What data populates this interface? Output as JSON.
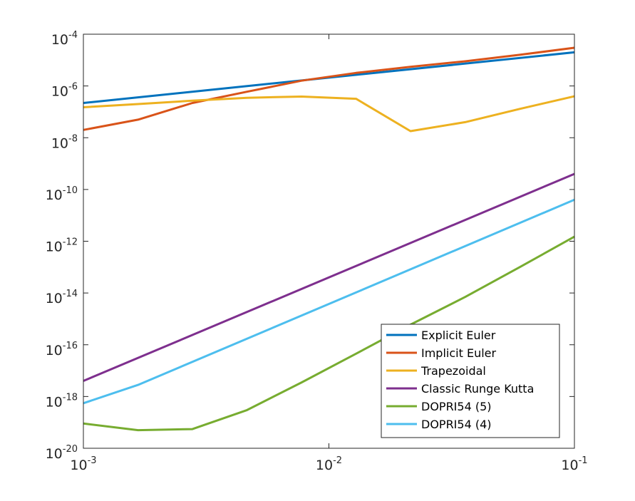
{
  "chart_data": {
    "type": "line",
    "title": "",
    "xlabel": "",
    "ylabel": "",
    "xscale": "log",
    "yscale": "log",
    "xlim": [
      0.001,
      0.1
    ],
    "ylim": [
      1e-20,
      0.0001
    ],
    "grid": false,
    "legend_position": "bottom-right",
    "x_ticks": [
      {
        "value": 0.001,
        "base": "10",
        "exp": "-3"
      },
      {
        "value": 0.01,
        "base": "10",
        "exp": "-2"
      },
      {
        "value": 0.1,
        "base": "10",
        "exp": "-1"
      }
    ],
    "y_ticks": [
      {
        "value": 0.0001,
        "base": "10",
        "exp": "-4"
      },
      {
        "value": 1e-06,
        "base": "10",
        "exp": "-6"
      },
      {
        "value": 1e-08,
        "base": "10",
        "exp": "-8"
      },
      {
        "value": 1e-10,
        "base": "10",
        "exp": "-10"
      },
      {
        "value": 1e-12,
        "base": "10",
        "exp": "-12"
      },
      {
        "value": 1e-14,
        "base": "10",
        "exp": "-14"
      },
      {
        "value": 1e-16,
        "base": "10",
        "exp": "-16"
      },
      {
        "value": 1e-18,
        "base": "10",
        "exp": "-18"
      },
      {
        "value": 1e-20,
        "base": "10",
        "exp": "-20"
      }
    ],
    "series": [
      {
        "name": "Explicit Euler",
        "color": "#0072BD",
        "points": [
          [
            0.001,
            2.2e-07
          ],
          [
            0.1,
            2e-05
          ]
        ]
      },
      {
        "name": "Implicit Euler",
        "color": "#D95319",
        "points": [
          [
            0.001,
            2e-08
          ],
          [
            0.00167,
            5e-08
          ],
          [
            0.00278,
            2.2e-07
          ],
          [
            0.00464,
            6e-07
          ],
          [
            0.00774,
            1.6e-06
          ],
          [
            0.0129,
            3.2e-06
          ],
          [
            0.0215,
            5.5e-06
          ],
          [
            0.0359,
            9e-06
          ],
          [
            0.0599,
            1.6e-05
          ],
          [
            0.1,
            3e-05
          ]
        ]
      },
      {
        "name": "Trapezoidal",
        "color": "#EDB120",
        "points": [
          [
            0.001,
            1.5e-07
          ],
          [
            0.00167,
            2e-07
          ],
          [
            0.00278,
            2.7e-07
          ],
          [
            0.00464,
            3.5e-07
          ],
          [
            0.00774,
            3.9e-07
          ],
          [
            0.0129,
            3.2e-07
          ],
          [
            0.0215,
            1.8e-08
          ],
          [
            0.0359,
            4e-08
          ],
          [
            0.0599,
            1.3e-07
          ],
          [
            0.1,
            4e-07
          ]
        ]
      },
      {
        "name": "Classic Runge Kutta",
        "color": "#7E2F8E",
        "points": [
          [
            0.001,
            4e-18
          ],
          [
            0.1,
            4e-10
          ]
        ]
      },
      {
        "name": "DOPRI54 (5)",
        "color": "#77AC30",
        "points": [
          [
            0.001,
            9e-20
          ],
          [
            0.00167,
            5e-20
          ],
          [
            0.00278,
            5.5e-20
          ],
          [
            0.00464,
            3e-19
          ],
          [
            0.00774,
            3.5e-18
          ],
          [
            0.0129,
            4.5e-17
          ],
          [
            0.0215,
            6e-16
          ],
          [
            0.0359,
            7e-15
          ],
          [
            0.0599,
            1e-13
          ],
          [
            0.1,
            1.5e-12
          ]
        ]
      },
      {
        "name": "DOPRI54 (4)",
        "color": "#4DBEEE",
        "points": [
          [
            0.001,
            5.5e-19
          ],
          [
            0.00167,
            2.8e-18
          ],
          [
            0.1,
            4e-11
          ]
        ]
      }
    ]
  }
}
